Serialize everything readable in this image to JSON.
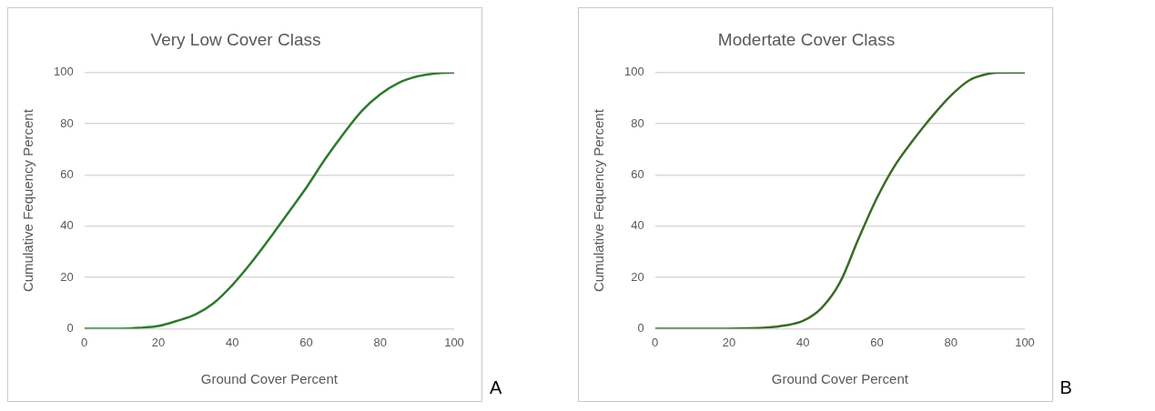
{
  "chart_data": [
    {
      "type": "line",
      "title": "Very Low Cover Class",
      "xlabel": "Ground Cover Percent",
      "ylabel": "Cumulative Fequency Percent",
      "x": [
        0,
        10,
        15,
        20,
        25,
        30,
        35,
        40,
        45,
        50,
        55,
        60,
        65,
        70,
        75,
        80,
        85,
        90,
        95,
        100
      ],
      "series": [
        {
          "color": "#2e7a2e",
          "values": [
            0,
            0,
            0.3,
            1,
            3,
            5.5,
            10,
            17,
            25.5,
            35,
            45,
            55,
            66,
            76,
            85,
            91.5,
            96,
            98.5,
            99.7,
            100
          ]
        }
      ],
      "xlim": [
        0,
        100
      ],
      "xticks": [
        0,
        20,
        40,
        60,
        80,
        100
      ],
      "ylim": [
        0,
        100
      ],
      "yticks": [
        0,
        20,
        40,
        60,
        80,
        100
      ],
      "grid": "y",
      "marker": "none",
      "annotations": [
        "A"
      ]
    },
    {
      "type": "line",
      "title": "Modertate Cover Class",
      "xlabel": "Ground Cover Percent",
      "ylabel": "Cumulative Fequency Percent",
      "x": [
        0,
        20,
        25,
        30,
        35,
        40,
        45,
        50,
        55,
        60,
        65,
        70,
        75,
        80,
        85,
        90,
        95,
        100
      ],
      "series": [
        {
          "color": "#3b6a25",
          "values": [
            0,
            0,
            0.1,
            0.4,
            1.2,
            3,
            8,
            18,
            35,
            51,
            64,
            74,
            83,
            91,
            97,
            99.5,
            100,
            100
          ]
        }
      ],
      "xlim": [
        0,
        100
      ],
      "xticks": [
        0,
        20,
        40,
        60,
        80,
        100
      ],
      "ylim": [
        0,
        100
      ],
      "yticks": [
        0,
        20,
        40,
        60,
        80,
        100
      ],
      "grid": "y",
      "marker": "none",
      "annotations": [
        "B"
      ]
    }
  ]
}
